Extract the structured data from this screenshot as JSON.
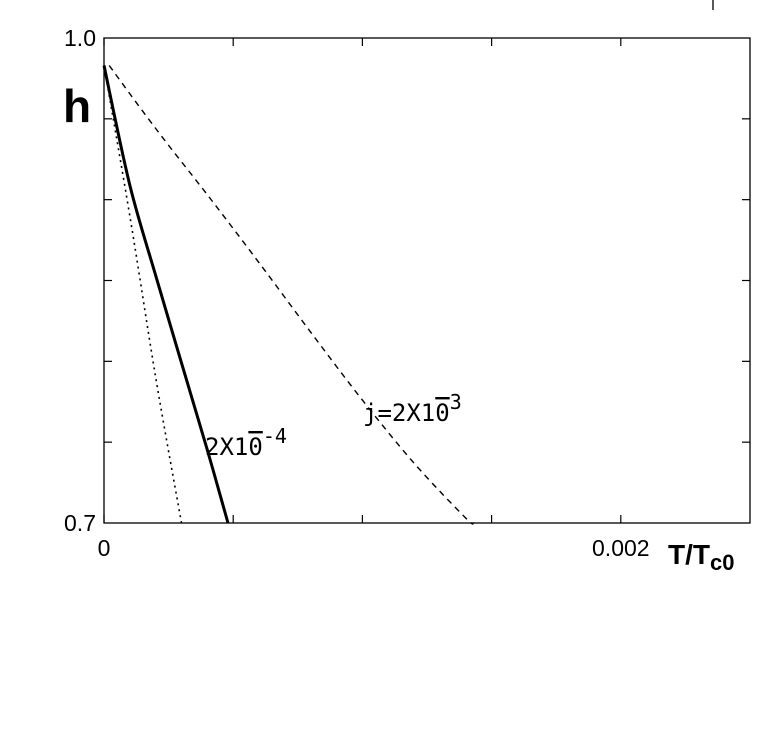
{
  "chart_data": {
    "type": "line",
    "title": "",
    "xlabel": "T/T",
    "xlabel_sub": "c0",
    "ylabel": "h",
    "xlim": [
      0,
      0.0025
    ],
    "ylim": [
      0.7,
      1.0
    ],
    "x_tick_labels": [
      {
        "value": 0,
        "label": "0"
      },
      {
        "value": 0.002,
        "label": "0.002"
      }
    ],
    "y_tick_labels": [
      {
        "value": 0.7,
        "label": "0.7"
      },
      {
        "value": 1.0,
        "label": "1.0"
      }
    ],
    "minor_x_ticks": [
      0,
      0.0005,
      0.001,
      0.0015,
      0.002
    ],
    "minor_y_ticks": [
      0.75,
      0.8,
      0.85,
      0.9,
      0.95
    ],
    "grid": false,
    "series": [
      {
        "style": "solid",
        "annotation": {
          "prefix": "2X1",
          "bar_char": "0",
          "exponent": "-4"
        },
        "x": [
          0.0,
          0.0001,
          0.0002,
          0.0003,
          0.0004,
          0.00048
        ],
        "y": [
          0.983,
          0.909,
          0.853,
          0.799,
          0.745,
          0.7
        ]
      },
      {
        "style": "dashed",
        "annotation": {
          "prefix": "j=2X1",
          "bar_char": "0",
          "exponent": "3"
        },
        "x": [
          2e-05,
          0.0002,
          0.0004,
          0.0006,
          0.0008,
          0.001,
          0.0012,
          0.0014,
          0.00143
        ],
        "y": [
          0.983,
          0.944,
          0.903,
          0.861,
          0.818,
          0.776,
          0.737,
          0.703,
          0.7
        ]
      },
      {
        "style": "dotted",
        "x": [
          0.0,
          0.0001,
          0.0002,
          0.0003
        ],
        "y": [
          0.983,
          0.89,
          0.79,
          0.7
        ]
      }
    ]
  }
}
